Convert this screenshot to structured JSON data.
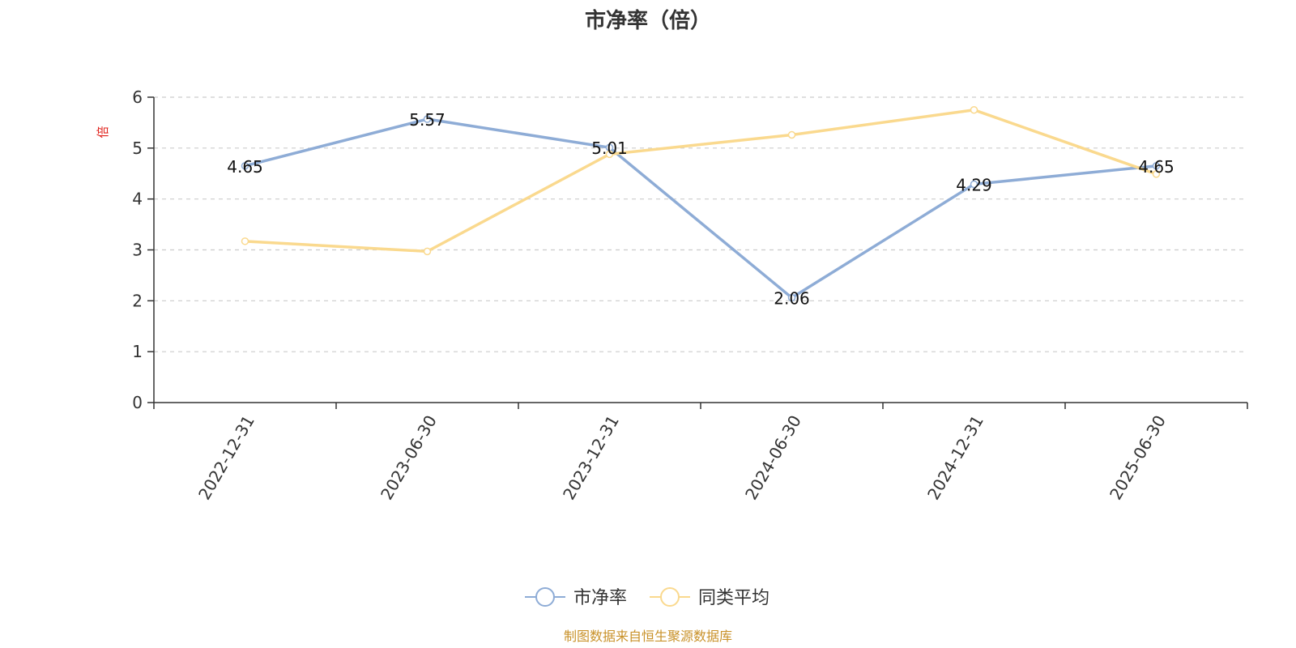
{
  "chart_data": {
    "type": "line",
    "title": "市净率（倍）",
    "ylabel": "倍",
    "categories": [
      "2022-12-31",
      "2023-06-30",
      "2023-12-31",
      "2024-06-30",
      "2024-12-31",
      "2025-06-30"
    ],
    "ylim": [
      0,
      6
    ],
    "yticks": [
      0,
      1,
      2,
      3,
      4,
      5,
      6
    ],
    "grid": true,
    "legend_position": "bottom-center",
    "series": [
      {
        "name": "市净率",
        "values": [
          4.65,
          5.57,
          5.01,
          2.06,
          4.29,
          4.65
        ],
        "labels": [
          "4.65",
          "5.57",
          "5.01",
          "2.06",
          "4.29",
          "4.65"
        ],
        "color": "#8eacd6"
      },
      {
        "name": "同类平均",
        "values": [
          3.17,
          2.97,
          4.88,
          5.26,
          5.75,
          4.49
        ],
        "color": "#fad98e"
      }
    ],
    "source": "制图数据来自恒生聚源数据库"
  }
}
